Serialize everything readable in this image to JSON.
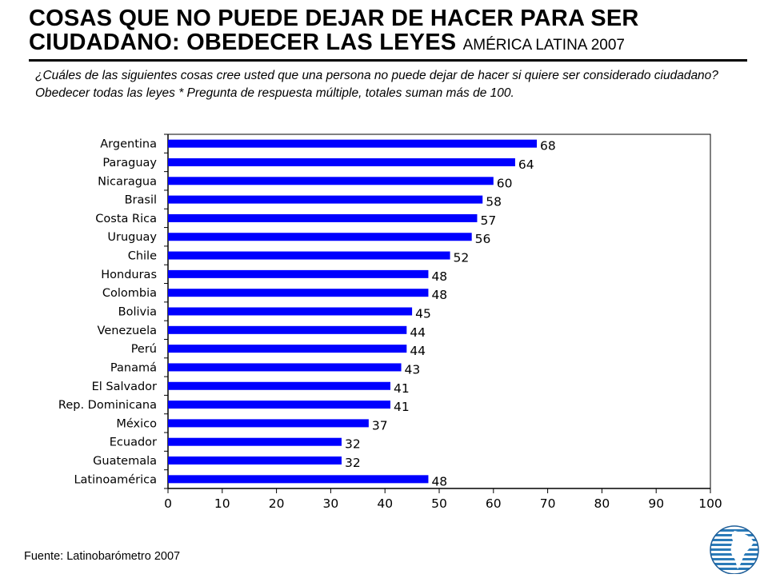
{
  "header": {
    "title_line1": "COSAS QUE NO PUEDE DEJAR DE HACER PARA SER",
    "title_line2": "CIUDADANO: OBEDECER LAS LEYES",
    "title_sub": "AMÉRICA LATINA 2007"
  },
  "question": "¿Cuáles de las siguientes cosas cree usted que una persona no puede dejar de hacer si quiere ser considerado ciudadano? Obedecer todas las leyes * Pregunta de respuesta múltiple, totales suman más de 100.",
  "footer": {
    "source": "Fuente: Latinobarómetro 2007"
  },
  "logo_icon": "latinobarometro-globe-icon",
  "colors": {
    "bar": "#0000ff",
    "axis": "#000000"
  },
  "chart_data": {
    "type": "bar",
    "orientation": "horizontal",
    "categories": [
      "Argentina",
      "Paraguay",
      "Nicaragua",
      "Brasil",
      "Costa Rica",
      "Uruguay",
      "Chile",
      "Honduras",
      "Colombia",
      "Bolivia",
      "Venezuela",
      "Perú",
      "Panamá",
      "El Salvador",
      "Rep. Dominicana",
      "México",
      "Ecuador",
      "Guatemala",
      "Latinoamérica"
    ],
    "values": [
      68,
      64,
      60,
      58,
      57,
      56,
      52,
      48,
      48,
      45,
      44,
      44,
      43,
      41,
      41,
      37,
      32,
      32,
      48
    ],
    "xlim": [
      0,
      100
    ],
    "xticks": [
      0,
      10,
      20,
      30,
      40,
      50,
      60,
      70,
      80,
      90,
      100
    ],
    "grid": false,
    "legend": "none"
  }
}
